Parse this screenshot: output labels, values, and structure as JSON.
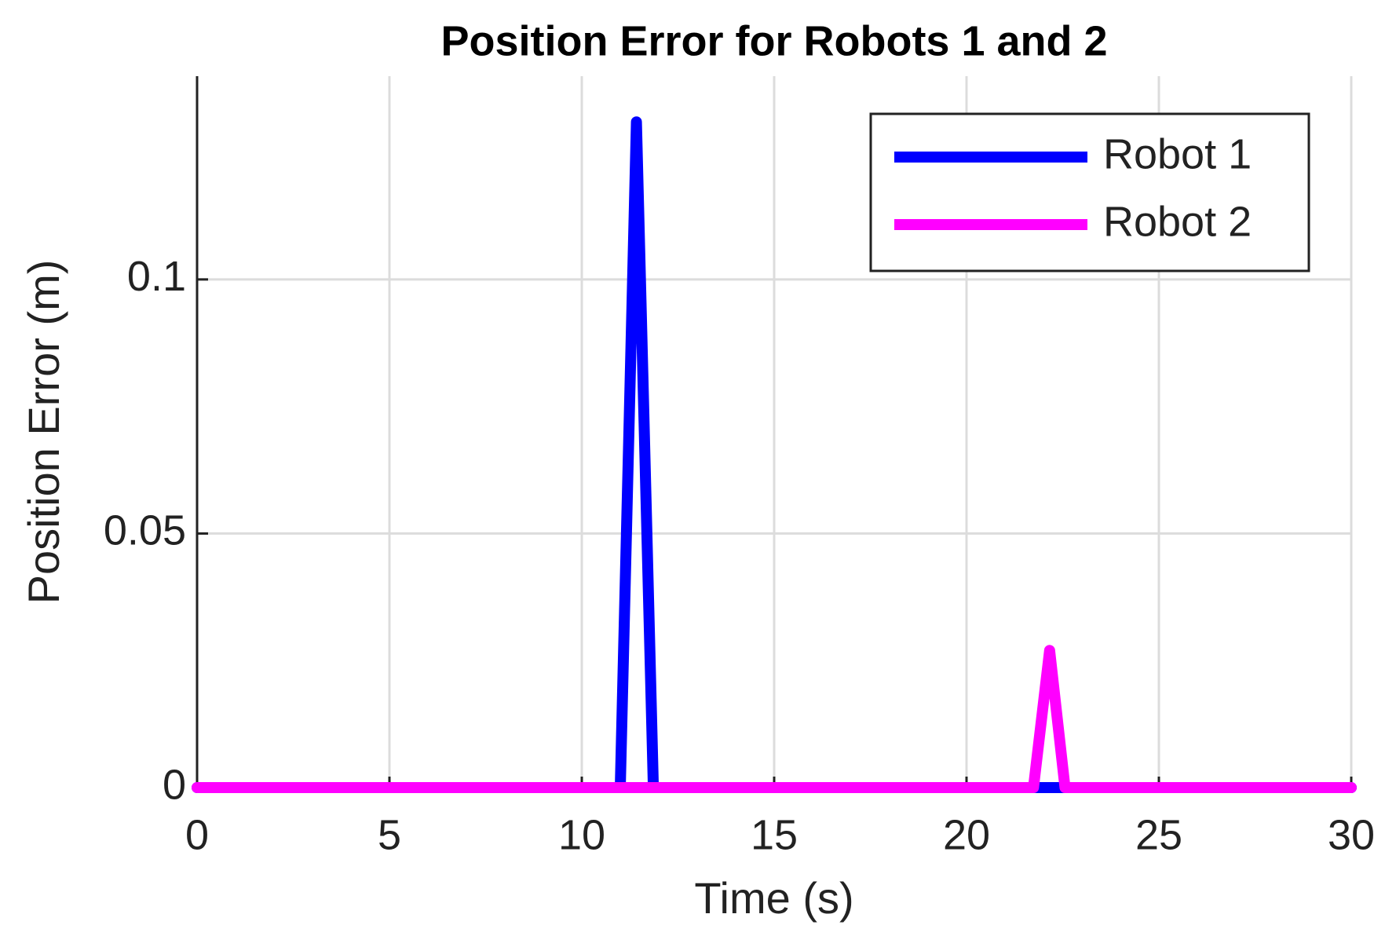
{
  "chart_data": {
    "type": "line",
    "title": "Position Error for Robots 1 and 2",
    "xlabel": "Time (s)",
    "ylabel": "Position Error (m)",
    "xlim": [
      0,
      30
    ],
    "xticks": [
      0,
      5,
      10,
      15,
      20,
      25,
      30
    ],
    "ylim": [
      0,
      0.14
    ],
    "yticks": [
      0,
      0.05,
      0.1
    ],
    "grid": true,
    "legend": "upper right",
    "series": [
      {
        "name": "Robot 1",
        "color": "#0000ff",
        "x": [
          0,
          11.0,
          11.42,
          11.86,
          30
        ],
        "values": [
          0,
          0,
          0.131,
          0,
          0
        ]
      },
      {
        "name": "Robot 2",
        "color": "#ff00ff",
        "x": [
          0,
          21.74,
          22.16,
          22.56,
          30
        ],
        "values": [
          0,
          0,
          0.027,
          0,
          0
        ]
      }
    ]
  }
}
